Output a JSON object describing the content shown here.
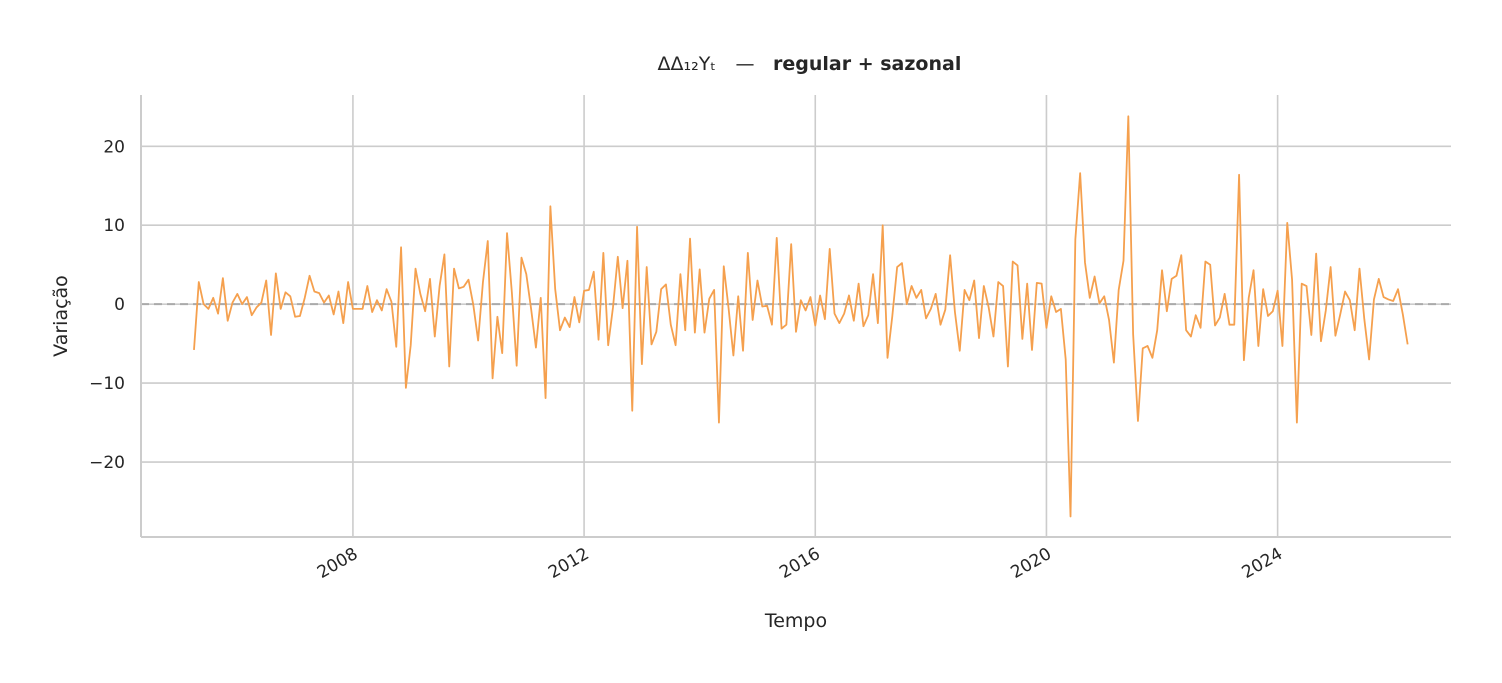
{
  "chart_data": {
    "type": "line",
    "title_math": "ΔΔ₁₂Yₜ",
    "title_separator": "—",
    "title_text": "regular + sazonal",
    "xlabel": "Tempo",
    "ylabel": "Variação",
    "x_ticks": [
      "2008",
      "2012",
      "2016",
      "2020",
      "2024"
    ],
    "y_ticks": [
      "20",
      "10",
      "0",
      "−10",
      "−20"
    ],
    "ylim": [
      -29.5,
      26.5
    ],
    "xlim": [
      "2004-05",
      "2027-01"
    ],
    "grid": true,
    "reference_line": {
      "y": 0,
      "style": "dashed",
      "color": "#aaaaaa"
    },
    "colors": {
      "line": "#F5A04E",
      "grid": "#cccccc",
      "axis": "#cccccc",
      "text": "#262626"
    },
    "series": [
      {
        "start": "2005-04",
        "frequency": "monthly",
        "values": [
          -5.8,
          2.8,
          0.0,
          -0.6,
          0.8,
          -1.2,
          3.3,
          -2.1,
          0.2,
          1.3,
          0.0,
          0.9,
          -1.4,
          -0.4,
          0.2,
          3.0,
          -3.9,
          3.9,
          -0.6,
          1.5,
          1.0,
          -1.6,
          -1.5,
          0.8,
          3.6,
          1.6,
          1.4,
          0.2,
          1.1,
          -1.3,
          1.6,
          -2.4,
          2.8,
          -0.6,
          -0.6,
          -0.6,
          2.3,
          -1.0,
          0.5,
          -0.8,
          1.9,
          0.3,
          -5.4,
          7.2,
          -10.6,
          -5.2,
          4.5,
          1.3,
          -0.9,
          3.2,
          -4.1,
          2.3,
          6.3,
          -7.9,
          4.5,
          2.0,
          2.2,
          3.1,
          -0.1,
          -4.6,
          2.8,
          8.0,
          -9.4,
          -1.6,
          -6.2,
          9.0,
          1.5,
          -7.8,
          5.9,
          3.8,
          -0.6,
          -5.5,
          0.8,
          -11.9,
          12.4,
          1.9,
          -3.3,
          -1.7,
          -2.9,
          0.9,
          -2.3,
          1.7,
          1.8,
          4.1,
          -4.5,
          6.5,
          -5.2,
          -0.4,
          6.0,
          -0.5,
          5.5,
          -13.5,
          9.8,
          -7.6,
          4.7,
          -5.1,
          -3.5,
          1.9,
          2.5,
          -2.6,
          -5.2,
          3.8,
          -3.3,
          8.3,
          -3.6,
          4.4,
          -3.6,
          0.7,
          1.8,
          -15.0,
          4.8,
          -0.5,
          -6.5,
          1.0,
          -5.9,
          6.5,
          -2.0,
          3.0,
          -0.3,
          -0.2,
          -2.6,
          8.4,
          -3.1,
          -2.6,
          7.6,
          -3.5,
          0.5,
          -0.8,
          0.9,
          -2.7,
          1.1,
          -1.9,
          7.0,
          -1.2,
          -2.4,
          -1.2,
          1.1,
          -2.1,
          2.6,
          -2.8,
          -1.4,
          3.8,
          -2.4,
          10.0,
          -6.8,
          -1.5,
          4.7,
          5.2,
          0.0,
          2.3,
          0.8,
          1.8,
          -1.8,
          -0.6,
          1.3,
          -2.6,
          -0.7,
          6.2,
          -1.0,
          -5.9,
          1.8,
          0.5,
          3.0,
          -4.3,
          2.3,
          -0.4,
          -4.1,
          2.8,
          2.3,
          -7.9,
          5.4,
          4.9,
          -4.4,
          2.6,
          -5.8,
          2.7,
          2.6,
          -3.0,
          1.0,
          -1.0,
          -0.6,
          -7.0,
          -26.9,
          8.2,
          16.6,
          5.3,
          0.8,
          3.5,
          0.1,
          1.0,
          -2.0,
          -7.4,
          1.8,
          5.5,
          23.8,
          -3.8,
          -14.8,
          -5.6,
          -5.3,
          -6.8,
          -3.3,
          4.3,
          -0.9,
          3.2,
          3.6,
          6.2,
          -3.3,
          -4.1,
          -1.4,
          -3.0,
          5.4,
          5.0,
          -2.7,
          -1.7,
          1.3,
          -2.6,
          -2.6,
          16.4,
          -7.1,
          0.8,
          4.3,
          -5.3,
          1.9,
          -1.5,
          -0.9,
          1.7,
          -5.3,
          10.3,
          3.1,
          -15.0,
          2.6,
          2.3,
          -3.9,
          6.4,
          -4.7,
          -0.8,
          4.7,
          -4.0,
          -1.3,
          1.6,
          0.5,
          -3.3,
          4.5,
          -1.9,
          -7.0,
          0.6,
          3.2,
          0.9,
          0.6,
          0.4,
          1.9,
          -1.3,
          -5.1
        ]
      }
    ]
  }
}
